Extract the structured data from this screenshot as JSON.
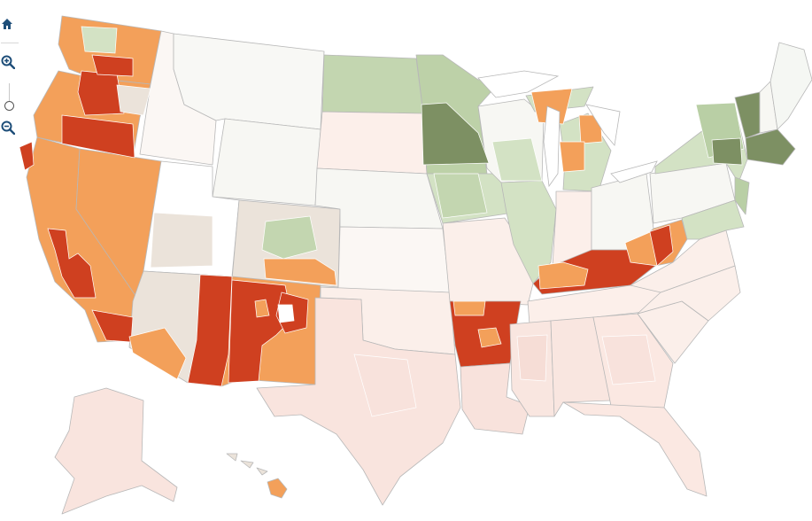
{
  "controls": {
    "home_icon": "home-icon",
    "zoom_in_icon": "zoom-in-icon",
    "zoom_out_icon": "zoom-out-icon",
    "zoom_level": 0.2
  },
  "palette": {
    "dark_red": "#cf4020",
    "orange": "#f3a05a",
    "pale_red": "#f8e2dc",
    "faint_red": "#fcefea",
    "neutral": "#ebe3da",
    "near_white": "#f7f7f3",
    "pale_green": "#d3e2c4",
    "light_green": "#b9cfa5",
    "dark_green": "#7d9063",
    "border": "#b8b8b8"
  }
}
